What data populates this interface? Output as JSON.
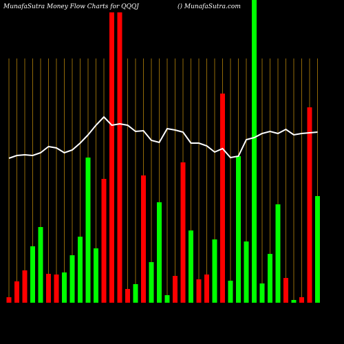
{
  "chart_data": {
    "type": "bar",
    "title": "MunafaSutra  Money Flow  Charts for QQQJ",
    "subtitle": "() MunafaSutra.com",
    "ylim": [
      0,
      440
    ],
    "grid": true,
    "grid_color": "#b8860b",
    "background": "#000000",
    "series": [
      {
        "name": "Money Flow",
        "type": "bar",
        "values": [
          8,
          31,
          47,
          82,
          110,
          42,
          41,
          44,
          69,
          96,
          211,
          79,
          180,
          422,
          422,
          20,
          27,
          185,
          59,
          146,
          11,
          39,
          204,
          105,
          34,
          41,
          92,
          304,
          32,
          213,
          89,
          440,
          28,
          71,
          143,
          36,
          4,
          8,
          284,
          155
        ],
        "colors": [
          "#ff0000",
          "#ff0000",
          "#ff0000",
          "#00ff00",
          "#00ff00",
          "#ff0000",
          "#ff0000",
          "#00ff00",
          "#00ff00",
          "#00ff00",
          "#00ff00",
          "#00ff00",
          "#ff0000",
          "#ff0000",
          "#ff0000",
          "#ff0000",
          "#00ff00",
          "#ff0000",
          "#00ff00",
          "#00ff00",
          "#00ff00",
          "#ff0000",
          "#ff0000",
          "#00ff00",
          "#ff0000",
          "#ff0000",
          "#00ff00",
          "#ff0000",
          "#00ff00",
          "#00ff00",
          "#00ff00",
          "#00ff00",
          "#00ff00",
          "#00ff00",
          "#00ff00",
          "#ff0000",
          "#00ff00",
          "#ff0000",
          "#ff0000",
          "#00ff00"
        ]
      },
      {
        "name": "Price",
        "type": "line",
        "color": "#ffffff",
        "values": [
          210,
          214,
          215,
          214,
          218,
          227,
          225,
          218,
          222,
          232,
          244,
          258,
          270,
          258,
          260,
          258,
          249,
          250,
          236,
          233,
          253,
          251,
          248,
          232,
          232,
          228,
          219,
          224,
          211,
          213,
          237,
          240,
          246,
          249,
          246,
          252,
          244,
          246,
          247,
          248
        ]
      }
    ]
  }
}
